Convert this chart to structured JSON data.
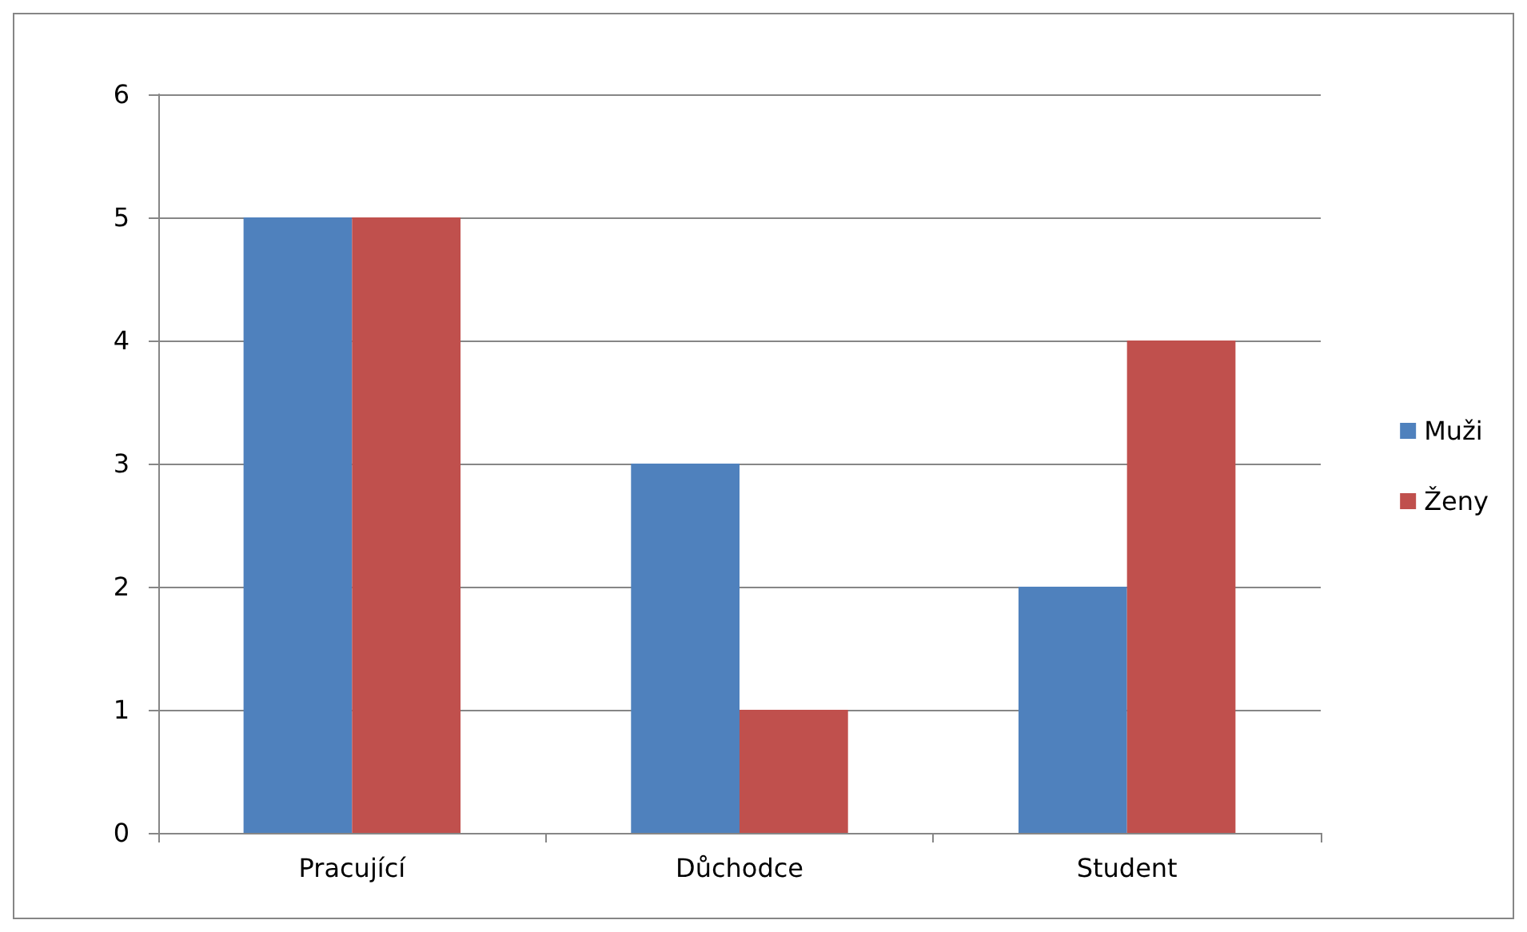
{
  "chart_data": {
    "type": "bar",
    "categories": [
      "Pracující",
      "Důchodce",
      "Student"
    ],
    "series": [
      {
        "name": "Muži",
        "color": "#4f81bd",
        "values": [
          5,
          3,
          2
        ]
      },
      {
        "name": "Ženy",
        "color": "#c0504d",
        "values": [
          5,
          1,
          4
        ]
      }
    ],
    "ylim": [
      0,
      6
    ],
    "yticks": [
      0,
      1,
      2,
      3,
      4,
      5,
      6
    ],
    "grid": "y",
    "legend": "right"
  }
}
